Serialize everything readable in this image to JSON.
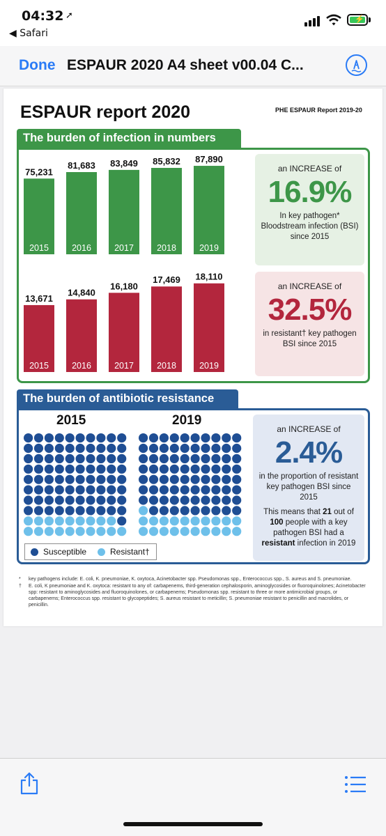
{
  "status_bar": {
    "time": "04:32",
    "back_app": "◀ Safari"
  },
  "nav": {
    "done_label": "Done",
    "title": "ESPAUR 2020 A4 sheet v00.04 C..."
  },
  "document": {
    "title": "ESPAUR report 2020",
    "subtitle": "PHE ESPAUR Report 2019-20",
    "section1": {
      "heading": "The burden of infection in numbers",
      "green_stat": {
        "pre": "an INCREASE of",
        "value": "16.9%",
        "desc": "In key pathogen* Bloodstream infection (BSI) since 2015",
        "color": "#3d9648"
      },
      "red_stat": {
        "pre": "an INCREASE of",
        "value": "32.5%",
        "desc": "in resistant† key pathogen BSI since 2015",
        "color": "#b3263d"
      }
    },
    "section2": {
      "heading": "The burden of antibiotic resistance",
      "year_left": "2015",
      "year_right": "2019",
      "blue_stat": {
        "pre": "an INCREASE of",
        "value": "2.4%",
        "desc": "in the proportion of resistant key pathogen BSI since 2015",
        "extra_1": "This means that ",
        "extra_num1": "21",
        "extra_2": " out of ",
        "extra_num2": "100",
        "extra_3": " people with a key pathogen BSI had a ",
        "extra_bold": "resistant",
        "extra_4": " infection in 2019",
        "color": "#2a5c96"
      },
      "legend": {
        "susceptible": "Susceptible",
        "resistant": "Resistant†",
        "susceptible_color": "#1f4e94",
        "resistant_color": "#6ec0ea"
      },
      "dot_grids": [
        {
          "label": "2015",
          "total": 100,
          "resistant": 19
        },
        {
          "label": "2019",
          "total": 100,
          "resistant": 21
        }
      ]
    },
    "footnotes": [
      {
        "mark": "*",
        "text": "key pathogens include: E. coli, K. pneumoniae, K. oxytoca, Acinetobacter spp. Pseudomonas spp., Enterococcus spp., S. aureus and S. pneumoniae."
      },
      {
        "mark": "†",
        "text": "E. coli, K pneumoniae and K. oxytoca: resistant to any of: carbapenems, third-generation cephalosporin, aminoglycosides or fluoroquinolones; Acinetobacter spp: resistant to aminoglycosides and fluoroquinolones, or carbapenems; Pseudomonas spp. resistant to three or more antimicrobial groups, or carbapenems; Enterococcus spp. resistant to glycopeptides; S. aureus resistant to meticillin; S. pneumoniae resistant to penicillin and macrolides, or penicillin."
      }
    ]
  },
  "chart_data": [
    {
      "type": "bar",
      "categories": [
        "2015",
        "2016",
        "2017",
        "2018",
        "2019"
      ],
      "values": [
        75231,
        81683,
        83849,
        85832,
        87890
      ],
      "value_labels": [
        "75,231",
        "81,683",
        "83,849",
        "85,832",
        "87,890"
      ],
      "color": "#3d9648",
      "ylim": [
        0,
        90000
      ]
    },
    {
      "type": "bar",
      "categories": [
        "2015",
        "2016",
        "2017",
        "2018",
        "2019"
      ],
      "values": [
        13671,
        14840,
        16180,
        17469,
        18110
      ],
      "value_labels": [
        "13,671",
        "14,840",
        "16,180",
        "17,469",
        "18,110"
      ],
      "color": "#b3263d",
      "ylim": [
        0,
        18500
      ]
    }
  ]
}
